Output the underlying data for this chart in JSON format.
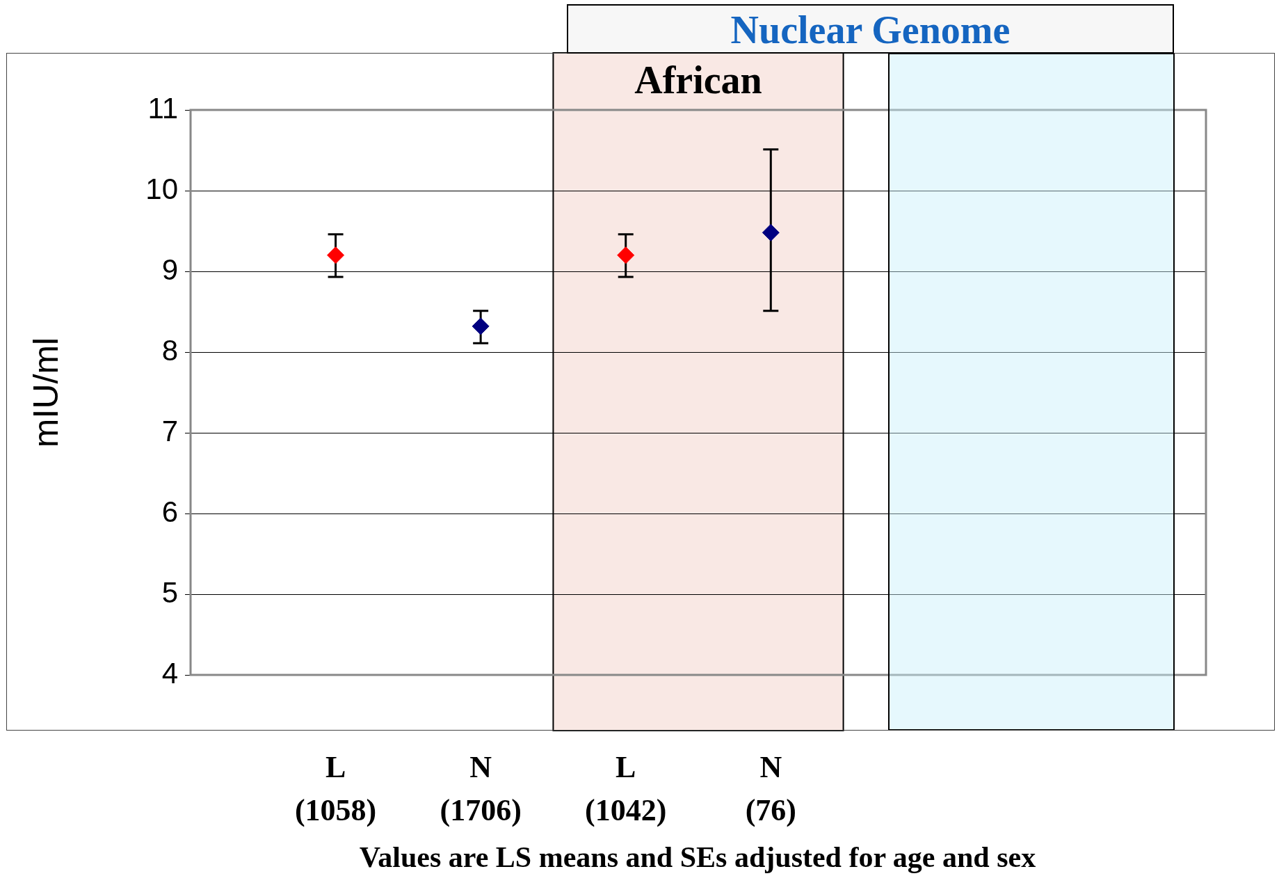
{
  "chart_data": {
    "type": "scatter",
    "title": "Nuclear Genome",
    "ylabel": "mIU/ml",
    "categories": [
      null,
      "L (1058)",
      "N (1706)",
      "L (1042)",
      "N (76)",
      null,
      null,
      null
    ],
    "values": [
      null,
      9.2,
      8.32,
      9.2,
      9.48,
      null,
      null,
      null
    ],
    "colors": [
      "#ff0000",
      "#ff0000",
      "#000080",
      "#ff0000",
      "#000080",
      "#000080",
      "#000080",
      "#000080"
    ],
    "errors": [
      null,
      [
        8.93,
        9.46
      ],
      [
        8.11,
        8.51
      ],
      [
        8.93,
        9.46
      ],
      [
        8.51,
        10.51
      ],
      null,
      null,
      null
    ],
    "marker": "diamond",
    "ylim": [
      4,
      11
    ],
    "yticks": [
      4,
      5,
      6,
      7,
      8,
      9,
      10,
      11
    ],
    "grid": "y",
    "bands": [
      {
        "axis": "x",
        "from": "L (1042)",
        "to": "N (76)",
        "label": "African",
        "color": "#f9e8e4"
      }
    ],
    "annotations": [
      "Values are LS means and SEs adjusted for age and sex"
    ]
  }
}
